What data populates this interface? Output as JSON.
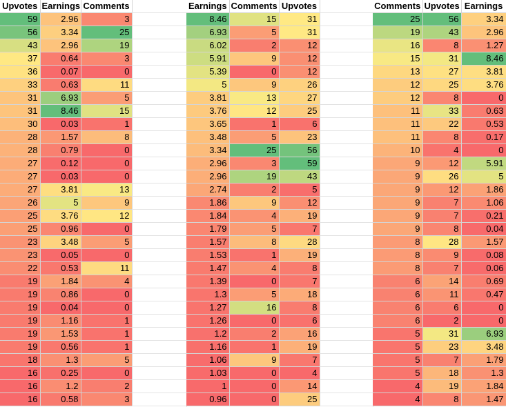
{
  "colors": {
    "low": "#f8696b",
    "mid": "#ffeb84",
    "high": "#63be7b",
    "gridline": "#d4d4d4"
  },
  "tables": [
    {
      "headers": [
        "Upvotes",
        "Earnings",
        "Comments"
      ],
      "rows": [
        [
          "59",
          "2.96",
          "3"
        ],
        [
          "56",
          "3.34",
          "25"
        ],
        [
          "43",
          "2.96",
          "19"
        ],
        [
          "37",
          "0.64",
          "3"
        ],
        [
          "36",
          "0.07",
          "0"
        ],
        [
          "33",
          "0.63",
          "11"
        ],
        [
          "31",
          "6.93",
          "5"
        ],
        [
          "31",
          "8.46",
          "15"
        ],
        [
          "30",
          "0.03",
          "1"
        ],
        [
          "28",
          "1.57",
          "8"
        ],
        [
          "28",
          "0.79",
          "0"
        ],
        [
          "27",
          "0.12",
          "0"
        ],
        [
          "27",
          "0.03",
          "0"
        ],
        [
          "27",
          "3.81",
          "13"
        ],
        [
          "26",
          "5",
          "9"
        ],
        [
          "25",
          "3.76",
          "12"
        ],
        [
          "25",
          "0.96",
          "0"
        ],
        [
          "23",
          "3.48",
          "5"
        ],
        [
          "23",
          "0.05",
          "0"
        ],
        [
          "22",
          "0.53",
          "11"
        ],
        [
          "19",
          "1.84",
          "4"
        ],
        [
          "19",
          "0.86",
          "0"
        ],
        [
          "19",
          "0.04",
          "0"
        ],
        [
          "19",
          "1.16",
          "1"
        ],
        [
          "19",
          "1.53",
          "1"
        ],
        [
          "19",
          "0.56",
          "1"
        ],
        [
          "18",
          "1.3",
          "5"
        ],
        [
          "16",
          "0.25",
          "0"
        ],
        [
          "16",
          "1.2",
          "2"
        ],
        [
          "16",
          "0.58",
          "3"
        ]
      ]
    },
    {
      "headers": [
        "Earnings",
        "Comments",
        "Upvotes"
      ],
      "rows": [
        [
          "8.46",
          "15",
          "31"
        ],
        [
          "6.93",
          "5",
          "31"
        ],
        [
          "6.02",
          "2",
          "12"
        ],
        [
          "5.91",
          "9",
          "12"
        ],
        [
          "5.39",
          "0",
          "12"
        ],
        [
          "5",
          "9",
          "26"
        ],
        [
          "3.81",
          "13",
          "27"
        ],
        [
          "3.76",
          "12",
          "25"
        ],
        [
          "3.65",
          "1",
          "6"
        ],
        [
          "3.48",
          "5",
          "23"
        ],
        [
          "3.34",
          "25",
          "56"
        ],
        [
          "2.96",
          "3",
          "59"
        ],
        [
          "2.96",
          "19",
          "43"
        ],
        [
          "2.74",
          "2",
          "5"
        ],
        [
          "1.86",
          "9",
          "12"
        ],
        [
          "1.84",
          "4",
          "19"
        ],
        [
          "1.79",
          "5",
          "7"
        ],
        [
          "1.57",
          "8",
          "28"
        ],
        [
          "1.53",
          "1",
          "19"
        ],
        [
          "1.47",
          "4",
          "8"
        ],
        [
          "1.39",
          "0",
          "7"
        ],
        [
          "1.3",
          "5",
          "18"
        ],
        [
          "1.27",
          "16",
          "8"
        ],
        [
          "1.26",
          "0",
          "6"
        ],
        [
          "1.2",
          "2",
          "16"
        ],
        [
          "1.16",
          "1",
          "19"
        ],
        [
          "1.06",
          "9",
          "7"
        ],
        [
          "1.03",
          "0",
          "4"
        ],
        [
          "1",
          "0",
          "14"
        ],
        [
          "0.96",
          "0",
          "25"
        ]
      ]
    },
    {
      "headers": [
        "Comments",
        "Upvotes",
        "Earnings"
      ],
      "rows": [
        [
          "25",
          "56",
          "3.34"
        ],
        [
          "19",
          "43",
          "2.96"
        ],
        [
          "16",
          "8",
          "1.27"
        ],
        [
          "15",
          "31",
          "8.46"
        ],
        [
          "13",
          "27",
          "3.81"
        ],
        [
          "12",
          "25",
          "3.76"
        ],
        [
          "12",
          "8",
          "0"
        ],
        [
          "11",
          "33",
          "0.63"
        ],
        [
          "11",
          "22",
          "0.53"
        ],
        [
          "11",
          "8",
          "0.17"
        ],
        [
          "10",
          "4",
          "0"
        ],
        [
          "9",
          "12",
          "5.91"
        ],
        [
          "9",
          "26",
          "5"
        ],
        [
          "9",
          "12",
          "1.86"
        ],
        [
          "9",
          "7",
          "1.06"
        ],
        [
          "9",
          "7",
          "0.21"
        ],
        [
          "9",
          "8",
          "0.04"
        ],
        [
          "8",
          "28",
          "1.57"
        ],
        [
          "8",
          "9",
          "0.08"
        ],
        [
          "8",
          "7",
          "0.06"
        ],
        [
          "6",
          "14",
          "0.69"
        ],
        [
          "6",
          "11",
          "0.47"
        ],
        [
          "6",
          "6",
          "0"
        ],
        [
          "6",
          "2",
          "0"
        ],
        [
          "5",
          "31",
          "6.93"
        ],
        [
          "5",
          "23",
          "3.48"
        ],
        [
          "5",
          "7",
          "1.79"
        ],
        [
          "5",
          "18",
          "1.3"
        ],
        [
          "4",
          "19",
          "1.84"
        ],
        [
          "4",
          "8",
          "1.47"
        ]
      ]
    }
  ]
}
